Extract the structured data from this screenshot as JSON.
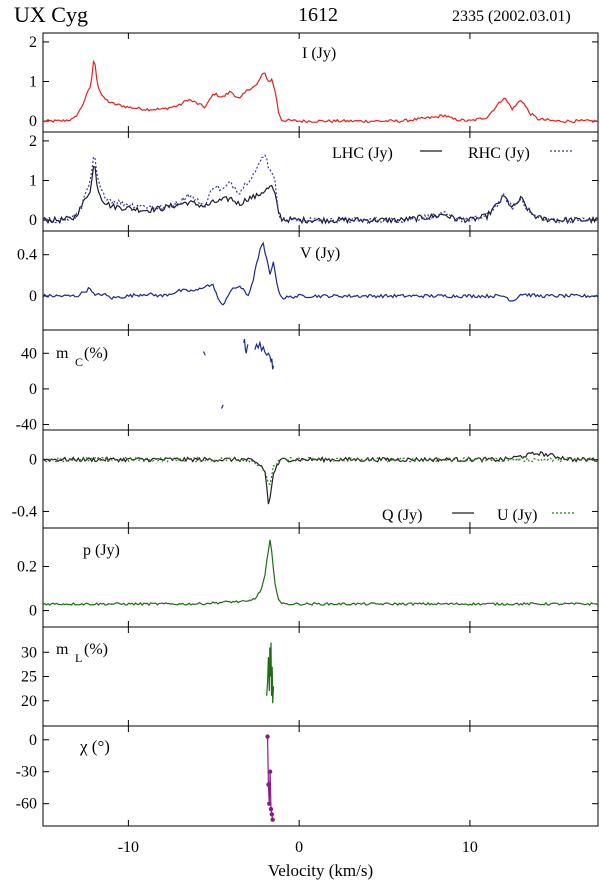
{
  "header": {
    "source": "UX Cyg",
    "line": "1612",
    "epoch": "2335 (2002.03.01)"
  },
  "chart_data": {
    "type": "line",
    "xlabel": "Velocity (km/s)",
    "xlim": [
      -15,
      17.5
    ],
    "xticks": [
      -10,
      0,
      10
    ],
    "xtick_labels": [
      "-10",
      "0",
      "10"
    ],
    "panels": [
      {
        "id": "I",
        "ylim": [
          -0.25,
          2.2
        ],
        "yticks": [
          0,
          1,
          2
        ],
        "ytick_labels": [
          "0",
          "1",
          "2"
        ],
        "labels": [
          {
            "text": "I (Jy)"
          }
        ],
        "series": [
          {
            "key": "I",
            "color": "#e8201c",
            "style": "solid",
            "x": [
              -15,
              -14,
              -13.2,
              -12.8,
              -12.5,
              -12.2,
              -12,
              -11.8,
              -11.5,
              -11,
              -10,
              -9,
              -8,
              -7,
              -6.5,
              -6,
              -5.5,
              -5,
              -4.5,
              -4,
              -3.5,
              -3,
              -2.5,
              -2.2,
              -2,
              -1.8,
              -1.6,
              -1.4,
              -1.2,
              -1,
              0,
              2,
              4,
              6,
              8,
              8.5,
              9,
              10,
              11,
              11.5,
              12,
              12.5,
              13,
              13.5,
              14,
              15,
              16,
              17.5
            ],
            "y": [
              0,
              0,
              0.05,
              0.3,
              0.6,
              0.9,
              1.65,
              0.9,
              0.6,
              0.45,
              0.35,
              0.3,
              0.3,
              0.4,
              0.55,
              0.45,
              0.35,
              0.7,
              0.6,
              0.75,
              0.55,
              0.8,
              0.9,
              1.15,
              1.2,
              1.0,
              1.05,
              0.75,
              0.2,
              0.02,
              0,
              0,
              0,
              0,
              0.1,
              0.15,
              0.05,
              0,
              0.1,
              0.35,
              0.6,
              0.3,
              0.55,
              0.2,
              0.05,
              0,
              0,
              0
            ]
          }
        ]
      },
      {
        "id": "LR",
        "ylim": [
          -0.25,
          2.2
        ],
        "yticks": [
          0,
          1,
          2
        ],
        "ytick_labels": [
          "0",
          "1",
          "2"
        ],
        "labels": [
          {
            "text": "LHC (Jy)"
          },
          {
            "text": "RHC (Jy)"
          }
        ],
        "series": [
          {
            "key": "LHC",
            "color": "#1a1a2e",
            "style": "solid",
            "x": [
              -15,
              -14,
              -13.2,
              -12.8,
              -12.5,
              -12.2,
              -12,
              -11.8,
              -11.5,
              -11,
              -10,
              -9,
              -8,
              -7,
              -6.5,
              -6,
              -5.5,
              -5,
              -4.5,
              -4,
              -3.5,
              -3,
              -2.5,
              -2.2,
              -2,
              -1.8,
              -1.6,
              -1.4,
              -1.2,
              -1,
              0,
              2,
              4,
              6,
              8,
              8.5,
              9,
              10,
              11,
              11.5,
              12,
              12.5,
              13,
              13.5,
              14,
              15,
              16,
              17.5
            ],
            "y": [
              0,
              0,
              0.05,
              0.3,
              0.55,
              0.8,
              1.5,
              0.8,
              0.5,
              0.35,
              0.3,
              0.25,
              0.3,
              0.4,
              0.45,
              0.4,
              0.35,
              0.45,
              0.5,
              0.55,
              0.4,
              0.55,
              0.6,
              0.7,
              0.75,
              0.8,
              0.85,
              0.6,
              0.2,
              0.02,
              0,
              0,
              0,
              0,
              0.1,
              0.15,
              0.05,
              0,
              0.1,
              0.35,
              0.6,
              0.3,
              0.55,
              0.2,
              0.05,
              0,
              0,
              0
            ]
          },
          {
            "key": "RHC",
            "color": "#3a3aa8",
            "style": "dotted",
            "x": [
              -15,
              -14,
              -13.2,
              -12.8,
              -12.5,
              -12.2,
              -12,
              -11.8,
              -11.5,
              -11,
              -10,
              -9,
              -8,
              -7,
              -6.5,
              -6,
              -5.5,
              -5,
              -4.5,
              -4,
              -3.5,
              -3,
              -2.5,
              -2.2,
              -2,
              -1.8,
              -1.6,
              -1.4,
              -1.2,
              -1,
              0,
              2,
              4,
              6,
              8,
              8.5,
              9,
              10,
              11,
              11.5,
              12,
              12.5,
              13,
              13.5,
              14,
              15,
              16,
              17.5
            ],
            "y": [
              0,
              0,
              0.05,
              0.3,
              0.65,
              1.0,
              1.7,
              1.0,
              0.65,
              0.5,
              0.4,
              0.35,
              0.3,
              0.45,
              0.65,
              0.5,
              0.35,
              0.9,
              0.75,
              0.95,
              0.7,
              1.0,
              1.25,
              1.55,
              1.7,
              1.35,
              1.25,
              0.9,
              0.2,
              0.02,
              0,
              0,
              0,
              0,
              0.1,
              0.15,
              0.05,
              0,
              0.1,
              0.35,
              0.6,
              0.3,
              0.55,
              0.2,
              0.05,
              0,
              0,
              0
            ]
          }
        ]
      },
      {
        "id": "V",
        "ylim": [
          -0.32,
          0.62
        ],
        "yticks": [
          0,
          0.4
        ],
        "ytick_labels": [
          "0",
          "0.4"
        ],
        "labels": [
          {
            "text": "V (Jy)"
          }
        ],
        "series": [
          {
            "key": "V",
            "color": "#1c2a8c",
            "style": "solid",
            "x": [
              -15,
              -14,
              -13,
              -12.5,
              -12.2,
              -12,
              -11.5,
              -11,
              -10,
              -9,
              -8,
              -7,
              -6,
              -5.5,
              -5,
              -4.7,
              -4.5,
              -4.2,
              -4,
              -3.5,
              -3,
              -2.7,
              -2.5,
              -2.3,
              -2.1,
              -1.9,
              -1.7,
              -1.5,
              -1.3,
              -1,
              0,
              2,
              4,
              6,
              8,
              10,
              12,
              12.5,
              13,
              14,
              16,
              17.5
            ],
            "y": [
              0,
              0,
              0,
              0.05,
              0.08,
              0,
              0.02,
              -0.02,
              0,
              0.02,
              0,
              0.05,
              0.05,
              0.1,
              0.1,
              -0.05,
              -0.1,
              0,
              0.05,
              0.1,
              0.0,
              0.15,
              0.3,
              0.45,
              0.5,
              0.35,
              0.2,
              0.35,
              0.1,
              -0.02,
              0,
              0,
              0,
              0,
              0,
              0,
              0,
              -0.05,
              0.02,
              0,
              0,
              0
            ]
          }
        ]
      },
      {
        "id": "mC",
        "ylim": [
          -45,
          65
        ],
        "yticks": [
          -40,
          0,
          40
        ],
        "ytick_labels": [
          "-40",
          "0",
          "40"
        ],
        "labels": [
          {
            "text": "m"
          },
          {
            "text": "C"
          },
          {
            "text": " (%)"
          }
        ],
        "series": [
          {
            "key": "mC_1",
            "color": "#1c2a8c",
            "style": "solid",
            "x": [
              -5.6,
              -5.5
            ],
            "y": [
              42,
              38
            ]
          },
          {
            "key": "mC_2",
            "color": "#1c2a8c",
            "style": "solid",
            "x": [
              -4.55,
              -4.45
            ],
            "y": [
              -22,
              -18
            ]
          },
          {
            "key": "mC_3",
            "color": "#1c2a8c",
            "style": "solid",
            "x": [
              -3.25,
              -3.2,
              -3.15,
              -3.1,
              -3.05,
              -3.0
            ],
            "y": [
              52,
              56,
              44,
              40,
              46,
              50
            ]
          },
          {
            "key": "mC_4",
            "color": "#1c2a8c",
            "style": "solid",
            "x": [
              -2.6,
              -2.5,
              -2.4,
              -2.3,
              -2.2,
              -2.1,
              -2.0,
              -1.9,
              -1.8,
              -1.7,
              -1.65,
              -1.6,
              -1.55,
              -1.5
            ],
            "y": [
              44,
              50,
              46,
              52,
              43,
              47,
              41,
              38,
              40,
              36,
              30,
              34,
              22,
              26
            ]
          }
        ]
      },
      {
        "id": "QU",
        "ylim": [
          -0.52,
          0.22
        ],
        "yticks": [
          -0.4,
          0
        ],
        "ytick_labels": [
          "-0.4",
          "0"
        ],
        "labels": [
          {
            "text": "Q (Jy)"
          },
          {
            "text": "U (Jy)"
          }
        ],
        "series": [
          {
            "key": "Q",
            "color": "#222222",
            "style": "solid",
            "x": [
              -15,
              -12,
              -10,
              -8,
              -6,
              -4,
              -3,
              -2.5,
              -2.2,
              -2,
              -1.9,
              -1.8,
              -1.7,
              -1.6,
              -1.5,
              -1.2,
              -1,
              0,
              4,
              8,
              12,
              14,
              16,
              17.5
            ],
            "y": [
              0,
              0,
              0,
              0,
              0,
              0,
              0,
              -0.03,
              -0.05,
              -0.1,
              -0.2,
              -0.35,
              -0.3,
              -0.2,
              -0.1,
              -0.03,
              0,
              0,
              0,
              0,
              0,
              0.05,
              0,
              0
            ]
          },
          {
            "key": "U",
            "color": "#2e7d1e",
            "style": "dotted",
            "x": [
              -15,
              -12,
              -10,
              -8,
              -6,
              -4,
              -3,
              -2.5,
              -2.2,
              -2,
              -1.9,
              -1.8,
              -1.7,
              -1.6,
              -1.5,
              -1.2,
              -1,
              0,
              4,
              8,
              12,
              14,
              16,
              17.5
            ],
            "y": [
              0,
              0,
              0,
              0,
              0,
              0,
              0,
              -0.03,
              -0.05,
              -0.1,
              -0.15,
              -0.2,
              -0.18,
              -0.12,
              -0.05,
              -0.02,
              0,
              0,
              0,
              0,
              0,
              0,
              0,
              0
            ]
          }
        ]
      },
      {
        "id": "p",
        "ylim": [
          -0.07,
          0.37
        ],
        "yticks": [
          0,
          0.2
        ],
        "ytick_labels": [
          "0",
          "0.2"
        ],
        "labels": [
          {
            "text": "p (Jy)"
          }
        ],
        "series": [
          {
            "key": "p",
            "color": "#1e6e14",
            "style": "solid",
            "x": [
              -15,
              -12,
              -10,
              -8,
              -6,
              -4,
              -3,
              -2.5,
              -2.2,
              -2,
              -1.9,
              -1.8,
              -1.7,
              -1.6,
              -1.5,
              -1.4,
              -1.2,
              -1,
              0,
              4,
              8,
              12,
              16,
              17.5
            ],
            "y": [
              0.03,
              0.03,
              0.03,
              0.03,
              0.03,
              0.04,
              0.04,
              0.06,
              0.1,
              0.16,
              0.22,
              0.27,
              0.32,
              0.26,
              0.18,
              0.12,
              0.05,
              0.03,
              0.03,
              0.03,
              0.03,
              0.03,
              0.03,
              0.03
            ]
          }
        ]
      },
      {
        "id": "mL",
        "ylim": [
          15,
          35
        ],
        "yticks": [
          20,
          25,
          30
        ],
        "ytick_labels": [
          "20",
          "25",
          "30"
        ],
        "labels": [
          {
            "text": "m"
          },
          {
            "text": "L"
          },
          {
            "text": " (%)"
          }
        ],
        "series": [
          {
            "key": "mL",
            "color": "#1e6e14",
            "style": "solid",
            "x": [
              -1.9,
              -1.85,
              -1.8,
              -1.75,
              -1.72,
              -1.68,
              -1.65,
              -1.62,
              -1.58,
              -1.55,
              -1.5
            ],
            "y": [
              21,
              24,
              29,
              22,
              31,
              25,
              32,
              21,
              27,
              19.5,
              23
            ]
          }
        ]
      },
      {
        "id": "chi",
        "ylim": [
          -80,
          12
        ],
        "yticks": [
          -60,
          -30,
          0
        ],
        "ytick_labels": [
          "-60",
          "-30",
          "0"
        ],
        "labels": [
          {
            "text": "χ (°)"
          }
        ],
        "series": [
          {
            "key": "chi",
            "color": "#8a1a8e",
            "style": "solid",
            "markers": true,
            "x": [
              -1.85,
              -1.8,
              -1.75,
              -1.7,
              -1.65,
              -1.6,
              -1.55
            ],
            "y": [
              3,
              -42,
              -60,
              -30,
              -65,
              -70,
              -75
            ]
          }
        ]
      }
    ]
  }
}
